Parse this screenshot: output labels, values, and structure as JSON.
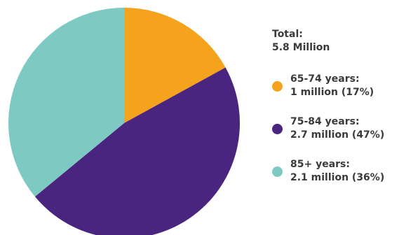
{
  "chart_data": {
    "type": "pie",
    "title": "",
    "total_label": "Total:",
    "total_value": "5.8 Million",
    "slices": [
      {
        "label": "65-74 years:",
        "value_text": "1 million (17%)",
        "value": 1.0,
        "percent": 17,
        "color": "#f5a21d"
      },
      {
        "label": "75-84 years:",
        "value_text": "2.7 million (47%)",
        "value": 2.7,
        "percent": 47,
        "color": "#4a2580"
      },
      {
        "label": "85+ years:",
        "value_text": "2.1 million (36%)",
        "value": 2.1,
        "percent": 36,
        "color": "#7ecac3"
      }
    ],
    "start_angle_deg": 0,
    "direction": "clockwise",
    "legend_position": "right"
  }
}
